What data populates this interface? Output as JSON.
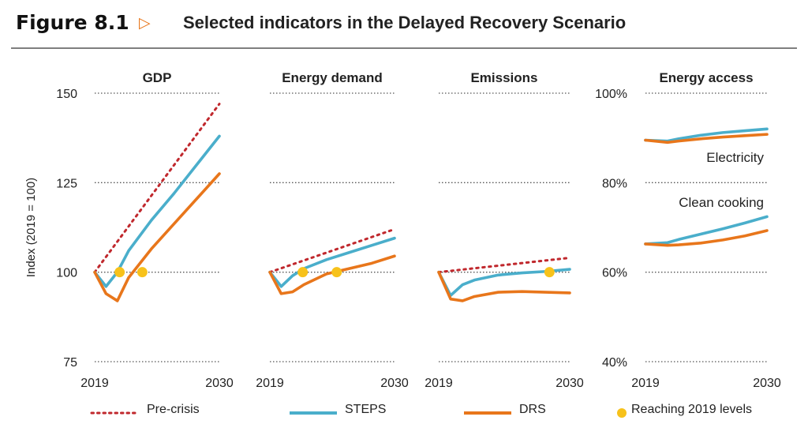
{
  "figure": {
    "number": "Figure 8.1",
    "arrow": "▷",
    "title": "Selected indicators in the Delayed Recovery Scenario"
  },
  "colors": {
    "pre_crisis": "#c0282d",
    "steps": "#4aaecb",
    "drs": "#e8761b",
    "reach": "#f7c21b",
    "grid": "#555555"
  },
  "legend": {
    "pre_crisis": "Pre-crisis",
    "steps": "STEPS",
    "drs": "DRS",
    "reach": "Reaching 2019 levels"
  },
  "chart_data": [
    {
      "type": "line",
      "title": "GDP",
      "ylabel": "Index (2019 = 100)",
      "ylim": [
        75,
        150
      ],
      "yticks": [
        "75",
        "100",
        "125",
        "150"
      ],
      "xlim": [
        2019,
        2030
      ],
      "xticks": [
        "2019",
        "2030"
      ],
      "grid": true,
      "series": [
        {
          "name": "Pre-crisis",
          "style": "dotted",
          "x": [
            2019,
            2030
          ],
          "y": [
            100,
            147
          ]
        },
        {
          "name": "STEPS",
          "x": [
            2019,
            2020,
            2021,
            2022,
            2024,
            2026,
            2028,
            2030
          ],
          "y": [
            100,
            96,
            100,
            106,
            114.5,
            122,
            130,
            138
          ]
        },
        {
          "name": "DRS",
          "x": [
            2019,
            2020,
            2021,
            2022,
            2024,
            2026,
            2028,
            2030
          ],
          "y": [
            100,
            94,
            92,
            98.5,
            106.5,
            113.5,
            120.5,
            127.5
          ]
        }
      ],
      "reach_points": [
        {
          "x": 2021.2,
          "y": 100
        },
        {
          "x": 2023.2,
          "y": 100
        }
      ]
    },
    {
      "type": "line",
      "title": "Energy demand",
      "ylim": [
        75,
        150
      ],
      "xlim": [
        2019,
        2030
      ],
      "xticks": [
        "2019",
        "2030"
      ],
      "grid": true,
      "series": [
        {
          "name": "Pre-crisis",
          "style": "dotted",
          "x": [
            2019,
            2030
          ],
          "y": [
            100,
            112
          ]
        },
        {
          "name": "STEPS",
          "x": [
            2019,
            2020,
            2021,
            2022,
            2024,
            2026,
            2028,
            2030
          ],
          "y": [
            100,
            96,
            99,
            101,
            103.5,
            105.5,
            107.5,
            109.5
          ]
        },
        {
          "name": "DRS",
          "x": [
            2019,
            2020,
            2021,
            2022,
            2024,
            2026,
            2028,
            2030
          ],
          "y": [
            100,
            94,
            94.5,
            96.5,
            99.5,
            101,
            102.5,
            104.5
          ]
        }
      ],
      "reach_points": [
        {
          "x": 2021.9,
          "y": 100
        },
        {
          "x": 2024.9,
          "y": 100
        }
      ]
    },
    {
      "type": "line",
      "title": "Emissions",
      "ylim": [
        75,
        150
      ],
      "xlim": [
        2019,
        2030
      ],
      "xticks": [
        "2019",
        "2030"
      ],
      "grid": true,
      "series": [
        {
          "name": "Pre-crisis",
          "style": "dotted",
          "x": [
            2019,
            2030
          ],
          "y": [
            100,
            104
          ]
        },
        {
          "name": "STEPS",
          "x": [
            2019,
            2020,
            2021,
            2022,
            2024,
            2026,
            2028,
            2030
          ],
          "y": [
            100,
            93.5,
            96.5,
            97.8,
            99.2,
            99.8,
            100.2,
            100.8
          ]
        },
        {
          "name": "DRS",
          "x": [
            2019,
            2020,
            2021,
            2022,
            2024,
            2026,
            2028,
            2030
          ],
          "y": [
            100,
            92.5,
            92,
            93.2,
            94.4,
            94.6,
            94.4,
            94.2
          ]
        }
      ],
      "reach_points": [
        {
          "x": 2028.3,
          "y": 100
        }
      ]
    },
    {
      "type": "line",
      "title": "Energy access",
      "ylim": [
        0.4,
        1.0
      ],
      "yticks": [
        "40%",
        "60%",
        "80%",
        "100%"
      ],
      "xlim": [
        2019,
        2030
      ],
      "xticks": [
        "2019",
        "2030"
      ],
      "grid": true,
      "annotations": [
        "Electricity",
        "Clean cooking"
      ],
      "series": [
        {
          "name": "STEPS",
          "group": "Electricity",
          "x": [
            2019,
            2021,
            2022,
            2024,
            2026,
            2028,
            2030
          ],
          "y": [
            0.895,
            0.893,
            0.898,
            0.906,
            0.912,
            0.916,
            0.92
          ]
        },
        {
          "name": "DRS",
          "group": "Electricity",
          "x": [
            2019,
            2021,
            2022,
            2024,
            2026,
            2028,
            2030
          ],
          "y": [
            0.895,
            0.89,
            0.893,
            0.898,
            0.902,
            0.905,
            0.908
          ]
        },
        {
          "name": "STEPS",
          "group": "Clean cooking",
          "x": [
            2019,
            2021,
            2022,
            2024,
            2026,
            2028,
            2030
          ],
          "y": [
            0.663,
            0.666,
            0.673,
            0.685,
            0.697,
            0.71,
            0.724
          ]
        },
        {
          "name": "DRS",
          "group": "Clean cooking",
          "x": [
            2019,
            2021,
            2022,
            2024,
            2026,
            2028,
            2030
          ],
          "y": [
            0.663,
            0.66,
            0.661,
            0.665,
            0.672,
            0.681,
            0.693
          ]
        }
      ]
    }
  ]
}
